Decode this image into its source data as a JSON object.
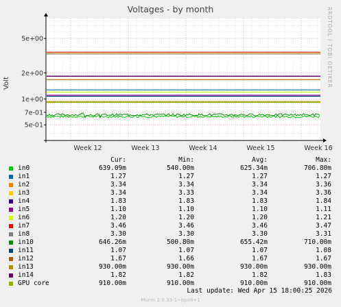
{
  "window": {
    "title": "Voltages - by month",
    "side_label": "RRDTOOL / TOBI OETIKER",
    "ylabel": "Volt",
    "last_update": "Last update: Wed Apr 15 18:00:25 2026",
    "footer": "Munin 2.0.33-1~bpo8+1"
  },
  "colors": {
    "background": "#f0f0f0",
    "plot_bg": "#ffffff",
    "grid_major": "#e08080",
    "grid_minor": "#e8d0d0",
    "axis": "#000000"
  },
  "legend": {
    "headers": [
      "Cur:",
      "Min:",
      "Avg:",
      "Max:"
    ],
    "rows": [
      {
        "name": "in0",
        "color": "#00cc00",
        "cur": "639.09m",
        "min": "540.00m",
        "avg": "625.34m",
        "max": "706.80m"
      },
      {
        "name": "in1",
        "color": "#0066b3",
        "cur": "1.27",
        "min": "1.27",
        "avg": "1.27",
        "max": "1.27"
      },
      {
        "name": "in2",
        "color": "#ff8000",
        "cur": "3.34",
        "min": "3.34",
        "avg": "3.34",
        "max": "3.36"
      },
      {
        "name": "in3",
        "color": "#ffcc00",
        "cur": "3.34",
        "min": "3.33",
        "avg": "3.34",
        "max": "3.36"
      },
      {
        "name": "in4",
        "color": "#330099",
        "cur": "1.83",
        "min": "1.83",
        "avg": "1.83",
        "max": "1.84"
      },
      {
        "name": "in5",
        "color": "#990099",
        "cur": "1.10",
        "min": "1.10",
        "avg": "1.10",
        "max": "1.11"
      },
      {
        "name": "in6",
        "color": "#ccff00",
        "cur": "1.20",
        "min": "1.20",
        "avg": "1.20",
        "max": "1.21"
      },
      {
        "name": "in7",
        "color": "#ff0000",
        "cur": "3.46",
        "min": "3.46",
        "avg": "3.46",
        "max": "3.47"
      },
      {
        "name": "in8",
        "color": "#808080",
        "cur": "3.30",
        "min": "3.30",
        "avg": "3.30",
        "max": "3.31"
      },
      {
        "name": "in10",
        "color": "#008f00",
        "cur": "646.26m",
        "min": "500.80m",
        "avg": "655.42m",
        "max": "710.00m"
      },
      {
        "name": "in11",
        "color": "#00487d",
        "cur": "1.07",
        "min": "1.07",
        "avg": "1.07",
        "max": "1.08"
      },
      {
        "name": "in12",
        "color": "#b35a00",
        "cur": "1.67",
        "min": "1.66",
        "avg": "1.67",
        "max": "1.67"
      },
      {
        "name": "in13",
        "color": "#b38f00",
        "cur": "930.00m",
        "min": "930.00m",
        "avg": "930.00m",
        "max": "930.00m"
      },
      {
        "name": "in14",
        "color": "#6b006b",
        "cur": "1.82",
        "min": "1.82",
        "avg": "1.82",
        "max": "1.83"
      },
      {
        "name": "GPU core",
        "color": "#8fb300",
        "cur": "910.00m",
        "min": "910.00m",
        "avg": "910.00m",
        "max": "910.00m"
      }
    ]
  },
  "chart_data": {
    "type": "line",
    "title": "Voltages - by month",
    "ylabel": "Volt",
    "xlabel": "",
    "y_scale": "log",
    "ylim": [
      0.33,
      8.5
    ],
    "y_ticks": [
      {
        "label": "5e+00",
        "value": 5
      },
      {
        "label": "2e+00",
        "value": 2
      },
      {
        "label": "1e+00",
        "value": 1
      },
      {
        "label": "7e-01",
        "value": 0.7
      },
      {
        "label": "5e-01",
        "value": 0.5
      }
    ],
    "x_ticks": [
      "Week 12",
      "Week 13",
      "Week 14",
      "Week 15",
      "Week 16"
    ],
    "grid": true,
    "series": [
      {
        "name": "in0",
        "color": "#00cc00",
        "value": 0.625,
        "noisy": true
      },
      {
        "name": "in1",
        "color": "#0066b3",
        "value": 1.27
      },
      {
        "name": "in2",
        "color": "#ff8000",
        "value": 3.34
      },
      {
        "name": "in3",
        "color": "#ffcc00",
        "value": 3.34
      },
      {
        "name": "in4",
        "color": "#330099",
        "value": 1.83
      },
      {
        "name": "in5",
        "color": "#990099",
        "value": 1.1
      },
      {
        "name": "in6",
        "color": "#ccff00",
        "value": 1.2
      },
      {
        "name": "in7",
        "color": "#ff0000",
        "value": 3.46
      },
      {
        "name": "in8",
        "color": "#808080",
        "value": 3.3
      },
      {
        "name": "in10",
        "color": "#008f00",
        "value": 0.655,
        "noisy": true
      },
      {
        "name": "in11",
        "color": "#00487d",
        "value": 1.07
      },
      {
        "name": "in12",
        "color": "#b35a00",
        "value": 1.67
      },
      {
        "name": "in13",
        "color": "#b38f00",
        "value": 0.93
      },
      {
        "name": "in14",
        "color": "#6b006b",
        "value": 1.82
      },
      {
        "name": "GPU core",
        "color": "#8fb300",
        "value": 0.91
      }
    ]
  }
}
